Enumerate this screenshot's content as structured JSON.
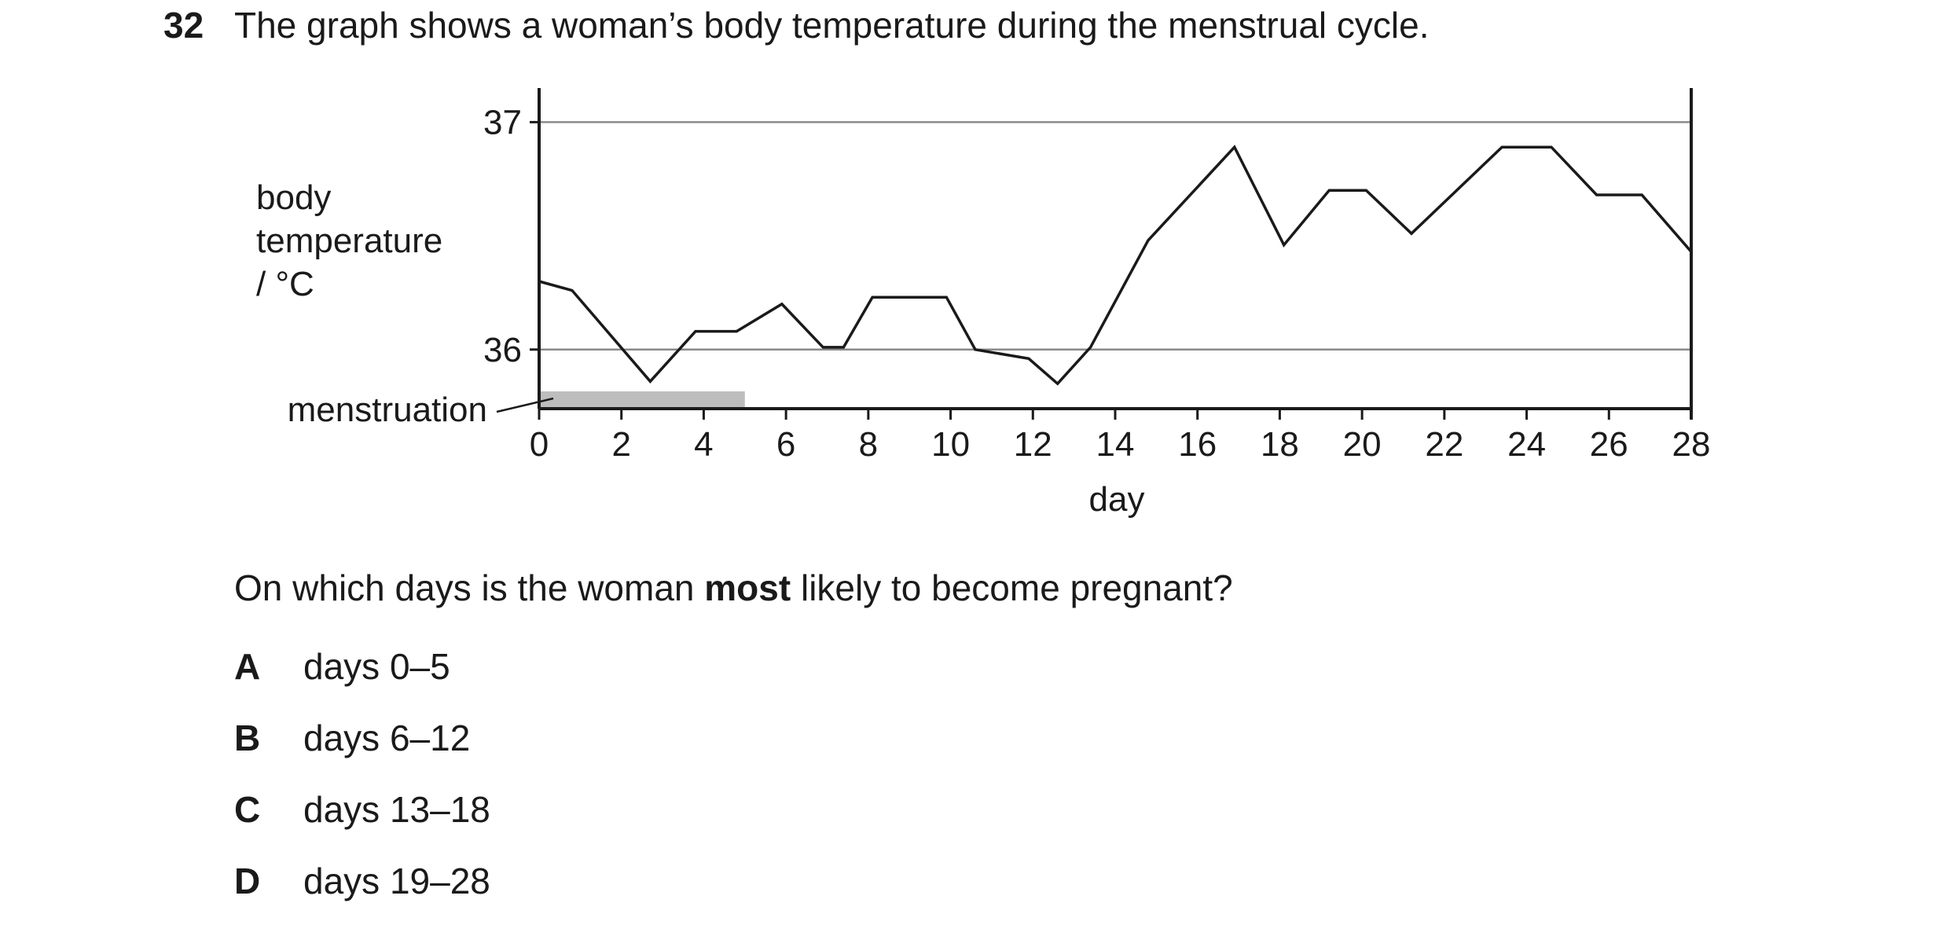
{
  "question": {
    "number": "32",
    "stem": "The graph shows a woman’s body temperature during the menstrual cycle.",
    "prompt_before": "On which days is the woman ",
    "prompt_bold": "most",
    "prompt_after": " likely to become pregnant?",
    "options": [
      {
        "letter": "A",
        "text": "days 0–5"
      },
      {
        "letter": "B",
        "text": "days 6–12"
      },
      {
        "letter": "C",
        "text": "days 13–18"
      },
      {
        "letter": "D",
        "text": "days 19–28"
      }
    ]
  },
  "chart_data": {
    "type": "line",
    "title": "",
    "xlabel": "day",
    "ylabel_lines": [
      "body",
      "temperature",
      "/ °C"
    ],
    "xlim": [
      0,
      28
    ],
    "ylim": [
      35.74,
      37.15
    ],
    "xticks": [
      0,
      2,
      4,
      6,
      8,
      10,
      12,
      14,
      16,
      18,
      20,
      22,
      24,
      26,
      28
    ],
    "yticks": [
      36,
      37
    ],
    "grid_y": [
      36,
      37
    ],
    "series": [
      {
        "x": [
          0,
          0.8,
          2.7,
          3.8,
          4.8,
          5.9,
          6.9,
          7.4,
          8.1,
          9.1,
          9.9,
          10.6,
          11.9,
          12.6,
          13.4,
          14.8,
          16.9,
          18.1,
          19.2,
          20.1,
          21.2,
          23.4,
          24.6,
          25.7,
          26.8,
          28
        ],
        "y": [
          36.3,
          36.26,
          35.86,
          36.08,
          36.08,
          36.2,
          36.01,
          36.01,
          36.23,
          36.23,
          36.23,
          36.0,
          35.96,
          35.85,
          36.01,
          36.48,
          36.89,
          36.46,
          36.7,
          36.7,
          36.51,
          36.89,
          36.89,
          36.68,
          36.68,
          36.43
        ]
      }
    ],
    "annotations": [
      {
        "label": "menstruation",
        "x_start": 0,
        "x_end": 5
      }
    ]
  }
}
